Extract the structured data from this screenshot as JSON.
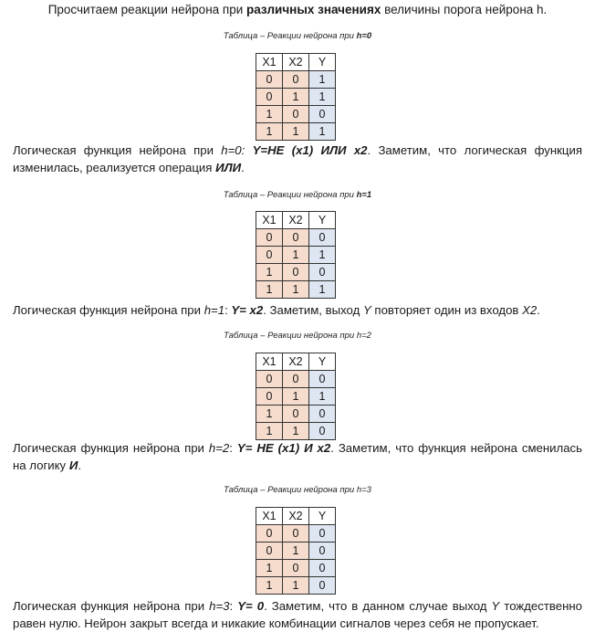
{
  "intro": {
    "pre": "Просчитаем реакции нейрона при ",
    "bold": "различных значениях",
    "post": " величины порога нейрона h."
  },
  "headers": [
    "X1",
    "X2",
    "Y"
  ],
  "sections": [
    {
      "caption_prefix": "Таблица – Реакции нейрона при ",
      "caption_h": "h=0",
      "rows": [
        [
          "0",
          "0",
          "1"
        ],
        [
          "0",
          "1",
          "1"
        ],
        [
          "1",
          "0",
          "0"
        ],
        [
          "1",
          "1",
          "1"
        ]
      ],
      "text": {
        "p1": "Логическая функция нейрона при ",
        "h": "h=0:",
        "p2": " ",
        "func": "Y=НЕ (x1) ИЛИ x2",
        "p3": ". Заметим, что логическая функция изменилась, реализуется операция ",
        "op": "ИЛИ",
        "p4": "."
      }
    },
    {
      "caption_prefix": "Таблица – Реакции нейрона при ",
      "caption_h": "h=1",
      "rows": [
        [
          "0",
          "0",
          "0"
        ],
        [
          "0",
          "1",
          "1"
        ],
        [
          "1",
          "0",
          "0"
        ],
        [
          "1",
          "1",
          "1"
        ]
      ],
      "text": {
        "p1": "Логическая функция нейрона при ",
        "h": "h=1",
        "p2": ": ",
        "func": "Y= x2",
        "p3": ". Заметим, выход ",
        "y": "Y",
        "p4": " повторяет один из входов ",
        "x2": "X2",
        "p5": "."
      }
    },
    {
      "caption_prefix": "Таблица – Реакции нейрона при ",
      "caption_h": "h=2",
      "rows": [
        [
          "0",
          "0",
          "0"
        ],
        [
          "0",
          "1",
          "1"
        ],
        [
          "1",
          "0",
          "0"
        ],
        [
          "1",
          "1",
          "0"
        ]
      ],
      "text": {
        "p1": "Логическая функция нейрона при ",
        "h": "h=2",
        "p2": ": ",
        "func": "Y= НЕ (x1) И x2",
        "p3": ". Заметим, что функция нейрона сменилась на логику ",
        "op": "И",
        "p4": "."
      }
    },
    {
      "caption_prefix": "Таблица – Реакции нейрона при ",
      "caption_h": "h=3",
      "rows": [
        [
          "0",
          "0",
          "0"
        ],
        [
          "0",
          "1",
          "0"
        ],
        [
          "1",
          "0",
          "0"
        ],
        [
          "1",
          "1",
          "0"
        ]
      ],
      "text": {
        "p1": "Логическая функция нейрона при ",
        "h": "h=3",
        "p2": ": ",
        "func": "Y= 0",
        "p3": ". Заметим, что в данном случае выход ",
        "y": "Y",
        "p4": " тождественно равен нулю. Нейрон закрыт всегда и никакие комбинации сигналов через себя не пропускает."
      }
    }
  ]
}
